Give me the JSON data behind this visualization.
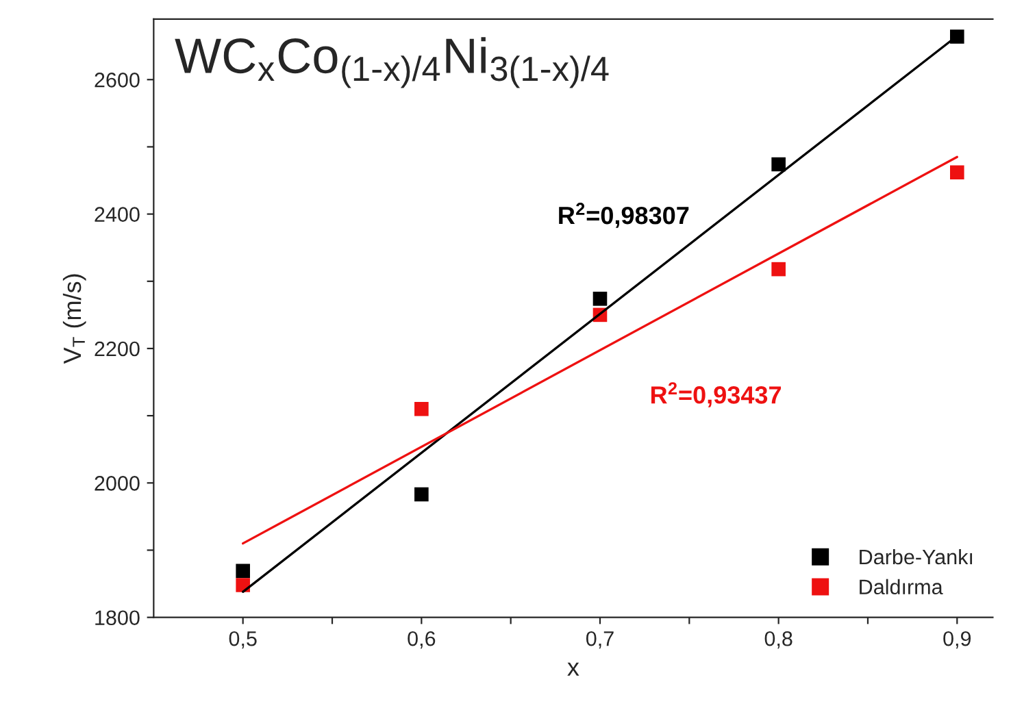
{
  "chart_data": {
    "type": "scatter",
    "title": "WC$_{x}$Co$_{(1-x)/4}$Ni$_{3(1-x)/4}$",
    "xlabel": "x",
    "ylabel": "V$_{T}$ (m/s)",
    "series": [
      {
        "name": "Darbe-Yankı",
        "color": "#000000",
        "marker": "square",
        "x": [
          0.5,
          0.6,
          0.7,
          0.8,
          0.9
        ],
        "values": [
          1869,
          1983,
          2274,
          2474,
          2664
        ]
      },
      {
        "name": "Daldırma",
        "color": "#ee1111",
        "marker": "square",
        "x": [
          0.5,
          0.6,
          0.7,
          0.8,
          0.9
        ],
        "values": [
          1848,
          2110,
          2250,
          2318,
          2462
        ]
      },
      {
        "color": "#000000",
        "type": "line",
        "marker": "none",
        "x": [
          0.5,
          0.9
        ],
        "values": [
          1838,
          2665
        ]
      },
      {
        "color": "#ee1111",
        "type": "line",
        "marker": "none",
        "x": [
          0.5,
          0.9
        ],
        "values": [
          1910,
          2485
        ]
      }
    ],
    "annotations": [
      "R$^{2}$=0,98307",
      "R$^{2}$=0,93437"
    ],
    "xlim": [
      0.45,
      0.92
    ],
    "ylim": [
      1800,
      2690
    ],
    "xticks": [
      {
        "value": 0.5,
        "label": "0,5"
      },
      {
        "value": 0.55,
        "label": null
      },
      {
        "value": 0.6,
        "label": "0,6"
      },
      {
        "value": 0.65,
        "label": null
      },
      {
        "value": 0.7,
        "label": "0,7"
      },
      {
        "value": 0.75,
        "label": null
      },
      {
        "value": 0.8,
        "label": "0,8"
      },
      {
        "value": 0.85,
        "label": null
      },
      {
        "value": 0.9,
        "label": "0,9"
      }
    ],
    "yticks": [
      1800,
      {
        "value": 1900,
        "label": null
      },
      2000,
      {
        "value": 2100,
        "label": null
      },
      2200,
      {
        "value": 2300,
        "label": null
      },
      2400,
      {
        "value": 2500,
        "label": null
      },
      2600
    ],
    "legend": "bottom right",
    "grid": false
  }
}
